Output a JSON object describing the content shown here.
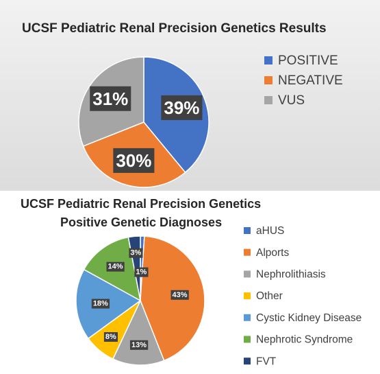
{
  "chart_data": [
    {
      "type": "pie",
      "title": [
        "UCSF Pediatric Renal  Precision Genetics Results"
      ],
      "categories": [
        "POSITIVE",
        "NEGATIVE",
        "VUS"
      ],
      "values": [
        39,
        30,
        31
      ],
      "value_labels": [
        "39%",
        "30%",
        "31%"
      ],
      "colors": [
        "#4472c4",
        "#ed7d31",
        "#a5a5a5"
      ],
      "legend": "right"
    },
    {
      "type": "pie",
      "title": [
        "UCSF Pediatric Renal Precision Genetics",
        "Positive Genetic Diagnoses"
      ],
      "categories": [
        "aHUS",
        "Alports",
        "Nephrolithiasis",
        "Other",
        "Cystic Kidney Disease",
        "Nephrotic Syndrome",
        "FVT"
      ],
      "values": [
        1,
        43,
        13,
        8,
        18,
        14,
        3
      ],
      "value_labels": [
        "1%",
        "43%",
        "13%",
        "8%",
        "18%",
        "14%",
        "3%"
      ],
      "colors": [
        "#4472c4",
        "#ed7d31",
        "#a5a5a5",
        "#ffc000",
        "#5b9bd5",
        "#70ad47",
        "#264478"
      ],
      "legend": "right"
    }
  ]
}
